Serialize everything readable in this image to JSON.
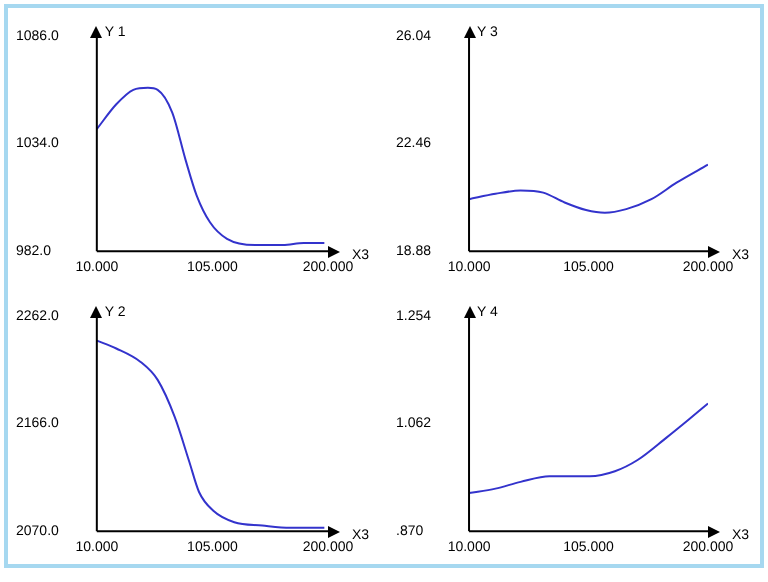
{
  "chart_data": [
    {
      "type": "line",
      "xlabel": "X3",
      "ylabel": "Y 1",
      "x": [
        10,
        26,
        40,
        52,
        60,
        72,
        83,
        92,
        103,
        117,
        140,
        163,
        180,
        197
      ],
      "series": [
        {
          "color": "#3333cc",
          "values": [
            1041,
            1053,
            1060,
            1061,
            1060,
            1049,
            1026,
            1009,
            996,
            988,
            985,
            985,
            986,
            986
          ]
        }
      ],
      "xlim": [
        10,
        200
      ],
      "xticks": [
        {
          "value": 10,
          "label": "10.000"
        },
        {
          "value": 105,
          "label": "105.000"
        },
        {
          "value": 200,
          "label": "200.000"
        }
      ],
      "ylim": [
        982,
        1086
      ],
      "yticks": [
        {
          "value": 982,
          "label": "982.0"
        },
        {
          "value": 1034,
          "label": "1034.0"
        },
        {
          "value": 1086,
          "label": "1086.0"
        }
      ],
      "grid": false,
      "marker": "none"
    },
    {
      "type": "line",
      "xlabel": "X3",
      "ylabel": "Y 3",
      "x": [
        10,
        31,
        51,
        69,
        86,
        103,
        118,
        135,
        155,
        175,
        200
      ],
      "series": [
        {
          "color": "#3333cc",
          "values": [
            20.61,
            20.79,
            20.9,
            20.83,
            20.5,
            20.25,
            20.16,
            20.28,
            20.61,
            21.16,
            21.76
          ]
        }
      ],
      "xlim": [
        10,
        200
      ],
      "xticks": [
        {
          "value": 10,
          "label": "10.000"
        },
        {
          "value": 105,
          "label": "105.000"
        },
        {
          "value": 200,
          "label": "200.000"
        }
      ],
      "ylim": [
        18.88,
        26.04
      ],
      "yticks": [
        18.88,
        22.46,
        26.04
      ],
      "grid": false,
      "marker": "none"
    },
    {
      "type": "line",
      "xlabel": "X3",
      "ylabel": "Y 2",
      "x": [
        10,
        26,
        46,
        60,
        74,
        86,
        94,
        106,
        123,
        146,
        169,
        197
      ],
      "series": [
        {
          "color": "#3333cc",
          "values": [
            2240,
            2233,
            2221,
            2205,
            2172,
            2132,
            2105,
            2088,
            2078,
            2075,
            2073,
            2073
          ]
        }
      ],
      "xlim": [
        10,
        200
      ],
      "xticks": [
        {
          "value": 10,
          "label": "10.000"
        },
        {
          "value": 105,
          "label": "105.000"
        },
        {
          "value": 200,
          "label": "200.000"
        }
      ],
      "ylim": [
        2070,
        2262
      ],
      "yticks": [
        {
          "value": 2070,
          "label": "2070.0"
        },
        {
          "value": 2166,
          "label": "2166.0"
        },
        {
          "value": 2262,
          "label": "2262.0"
        }
      ],
      "grid": false,
      "marker": "none"
    },
    {
      "type": "line",
      "xlabel": "X3",
      "ylabel": "Y 4",
      "x": [
        10,
        31,
        51,
        74,
        106,
        126,
        144,
        167,
        184,
        200
      ],
      "series": [
        {
          "color": "#3333cc",
          "values": [
            0.938,
            0.946,
            0.958,
            0.968,
            0.968,
            0.977,
            0.997,
            1.037,
            1.068,
            1.098
          ]
        }
      ],
      "xlim": [
        10,
        200
      ],
      "xticks": [
        {
          "value": 10,
          "label": "10.000"
        },
        {
          "value": 105,
          "label": "105.000"
        },
        {
          "value": 200,
          "label": "200.000"
        }
      ],
      "ylim": [
        0.87,
        1.254
      ],
      "yticks": [
        {
          "value": 0.87,
          "label": ".870"
        },
        {
          "value": 1.062,
          "label": "1.062"
        },
        {
          "value": 1.254,
          "label": "1.254"
        }
      ],
      "grid": false,
      "marker": "none"
    }
  ]
}
